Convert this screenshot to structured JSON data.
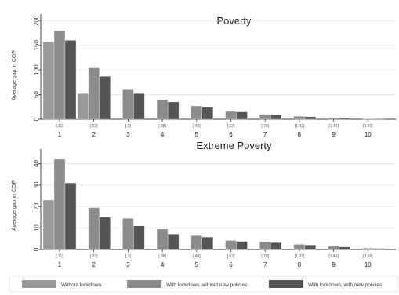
{
  "chart_data": [
    {
      "type": "bar",
      "title": "Poverty",
      "ylabel": "Average gap in COP",
      "xlabel": "",
      "ylim": [
        0,
        210
      ],
      "yticks": [
        0,
        50,
        100,
        150,
        200
      ],
      "categories": [
        "1",
        "2",
        "3",
        "4",
        "5",
        "6",
        "7",
        "8",
        "9",
        "10"
      ],
      "subcategories": [
        "[.11]",
        "[.22]",
        "[.3]",
        "[.38]",
        "[.49]",
        "[.62]",
        "[.78]",
        "[1.02]",
        "[1.46]",
        "[3.69]"
      ],
      "series": [
        {
          "name": "Without lockdown",
          "values": [
            157,
            52,
            0,
            0,
            0,
            0,
            0,
            0,
            0,
            0
          ]
        },
        {
          "name": "With lockdown, without new policies",
          "values": [
            180,
            104,
            60,
            40,
            27,
            16,
            10,
            6,
            3,
            1
          ]
        },
        {
          "name": "With lockdown, with new policies",
          "values": [
            160,
            87,
            52,
            35,
            24,
            15,
            9,
            5,
            2,
            1
          ]
        }
      ],
      "grid": true
    },
    {
      "type": "bar",
      "title": "Extreme Poverty",
      "ylabel": "Average gap in COP",
      "xlabel": "",
      "ylim": [
        0,
        46
      ],
      "yticks": [
        0,
        10,
        20,
        30,
        40
      ],
      "categories": [
        "1",
        "2",
        "3",
        "4",
        "5",
        "6",
        "7",
        "8",
        "9",
        "10"
      ],
      "subcategories": [
        "[.11]",
        "[.22]",
        "[.3]",
        "[.38]",
        "[.49]",
        "[.62]",
        "[.78]",
        "[1.02]",
        "[1.46]",
        "[3.69]"
      ],
      "series": [
        {
          "name": "Without lockdown",
          "values": [
            23,
            0,
            0,
            0,
            0,
            0,
            0,
            0,
            0,
            0
          ]
        },
        {
          "name": "With lockdown, without new policies",
          "values": [
            42,
            19.5,
            14.5,
            9.5,
            6.5,
            4.2,
            3.6,
            2.4,
            1.5,
            0.6
          ]
        },
        {
          "name": "With lockdown, with new policies",
          "values": [
            31,
            15,
            11,
            7.2,
            5.8,
            3.8,
            3.2,
            2.1,
            1.2,
            0.5
          ]
        }
      ],
      "grid": true
    }
  ],
  "legend": {
    "placement": "bottom",
    "items": [
      {
        "label": "Without lockdown",
        "color": "#999999"
      },
      {
        "label": "With lockdown, without new policies",
        "color": "#8c8c8c"
      },
      {
        "label": "With lockdown, with new policies",
        "color": "#555555"
      }
    ]
  },
  "colors": [
    "#999999",
    "#8c8c8c",
    "#555555"
  ]
}
